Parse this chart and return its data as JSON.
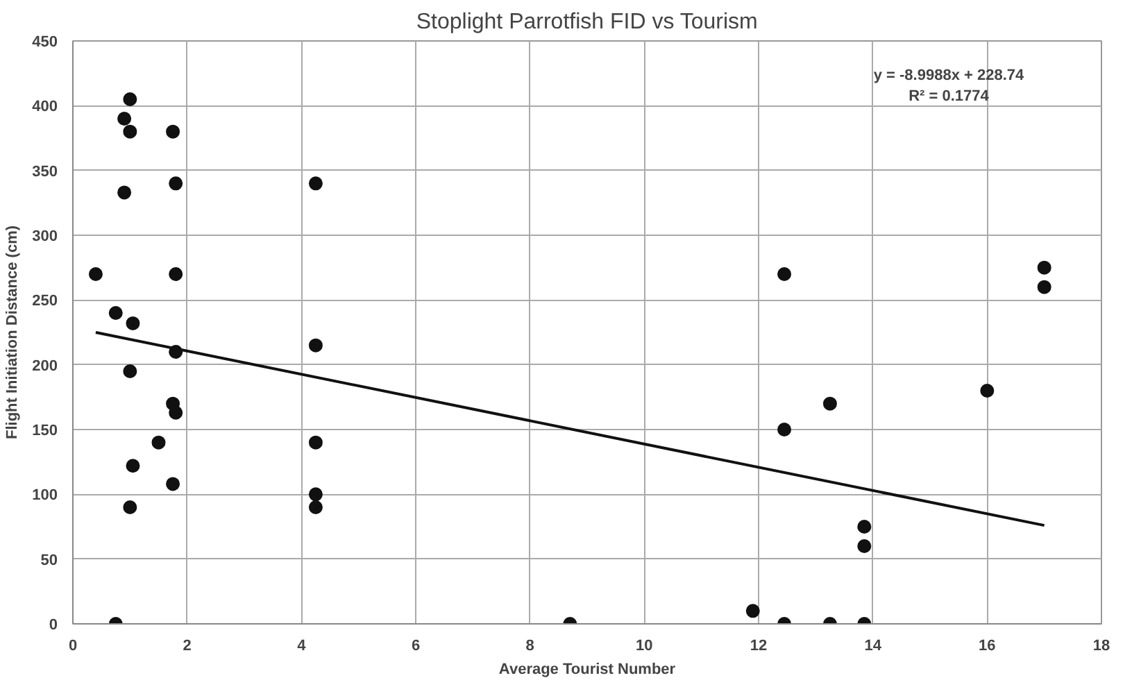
{
  "chart_data": {
    "type": "scatter",
    "title": "Stoplight Parrotfish FID vs Tourism",
    "xlabel": "Average Tourist Number",
    "ylabel": "Flight Initiation Distance (cm)",
    "xlim": [
      0,
      18
    ],
    "xticks": [
      0,
      2,
      4,
      6,
      8,
      10,
      12,
      14,
      16,
      18
    ],
    "ylim": [
      0,
      450
    ],
    "yticks": [
      0,
      50,
      100,
      150,
      200,
      250,
      300,
      350,
      400,
      450
    ],
    "grid": true,
    "annotations": [
      "y = -8.9988x + 228.74\nR² = 0.1774"
    ],
    "series": [
      {
        "marker": "circle",
        "color": "#111111",
        "x": [
          0.4,
          0.75,
          0.75,
          0.9,
          0.9,
          1.0,
          1.0,
          1.0,
          1.0,
          1.05,
          1.05,
          1.5,
          1.75,
          1.75,
          1.75,
          1.8,
          1.8,
          1.8,
          1.8,
          4.25,
          4.25,
          4.25,
          4.25,
          4.25,
          8.7,
          11.9,
          12.45,
          12.45,
          12.45,
          13.25,
          13.25,
          13.85,
          13.85,
          13.85,
          16,
          17,
          17
        ],
        "values": [
          270,
          240,
          0,
          390,
          333,
          405,
          380,
          195,
          90,
          232,
          122,
          140,
          380,
          170,
          108,
          340,
          270,
          210,
          163,
          340,
          215,
          140,
          100,
          90,
          0,
          10,
          270,
          150,
          0,
          170,
          0,
          75,
          60,
          0,
          180,
          275,
          260
        ]
      },
      {
        "type": "line",
        "color": "#111111",
        "line_style": "solid",
        "x": [
          0.4,
          17
        ],
        "values": [
          225,
          76
        ]
      }
    ]
  }
}
